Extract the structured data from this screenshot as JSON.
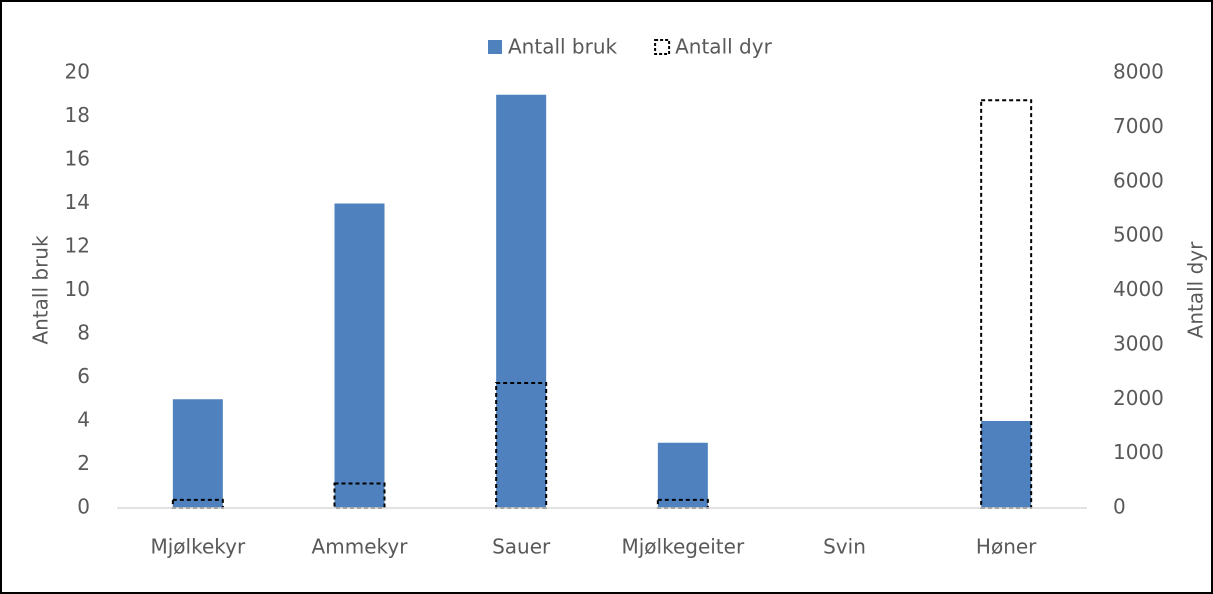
{
  "chart_data": {
    "type": "bar",
    "categories": [
      "Mjølkekyr",
      "Ammekyr",
      "Sauer",
      "Mjølkegeiter",
      "Svin",
      "Høner"
    ],
    "series": [
      {
        "name": "Antall bruk",
        "color": "#4e81bd",
        "values": [
          5,
          14,
          19,
          3,
          0,
          4
        ]
      },
      {
        "name": "Antall dyr",
        "color": "#000000",
        "dashed": true,
        "axis": "y2",
        "values": [
          150,
          450,
          2300,
          150,
          0,
          7500
        ]
      }
    ],
    "ylabel": "Antall bruk",
    "y2label": "Antall dyr",
    "ylim": [
      0,
      20
    ],
    "yticks": [
      0,
      2,
      4,
      6,
      8,
      10,
      12,
      14,
      16,
      18,
      20
    ],
    "y2lim": [
      0,
      8000
    ],
    "y2ticks": [
      0,
      1000,
      2000,
      3000,
      4000,
      5000,
      6000,
      7000,
      8000
    ],
    "grid": false,
    "legend": "top"
  }
}
